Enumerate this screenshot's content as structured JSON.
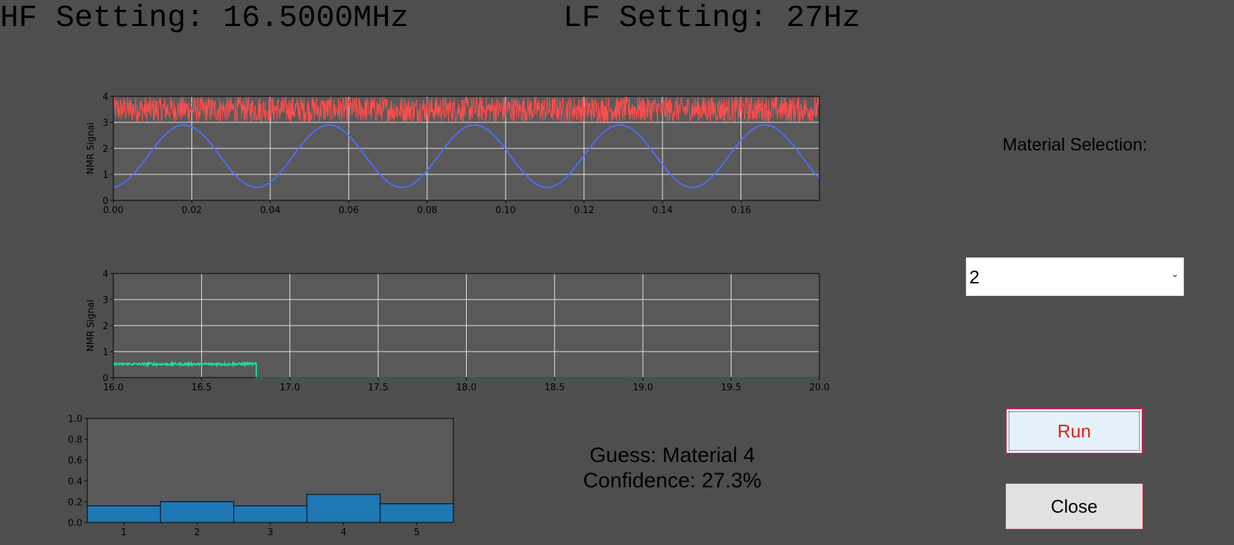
{
  "header": {
    "hf_setting": "HF Setting: 16.5000MHz",
    "lf_setting": "LF Setting: 27Hz"
  },
  "controls": {
    "material_label": "Material Selection:",
    "material_selected": "2",
    "run_label": "Run",
    "close_label": "Close"
  },
  "result": {
    "guess": "Guess: Material 4",
    "confidence": "Confidence: 27.3%"
  },
  "colors": {
    "background": "#4e4e4e",
    "plot_bg": "#595959",
    "noise": "#ff4d4d",
    "lf_wave": "#4d6fff",
    "spectrum": "#1fd9a0",
    "bars": "#1f77b4",
    "run_text": "#e02010"
  },
  "chart_data": [
    {
      "type": "line",
      "ylabel": "NMR Signal",
      "xlim": [
        0.0,
        0.18
      ],
      "ylim": [
        0,
        4
      ],
      "xticks": [
        "0.00",
        "0.02",
        "0.04",
        "0.06",
        "0.08",
        "0.10",
        "0.12",
        "0.14",
        "0.16"
      ],
      "yticks": [
        "0",
        "1",
        "2",
        "3",
        "4"
      ],
      "grid": true,
      "series": [
        {
          "kind": "noise",
          "y_band": [
            3.0,
            4.0
          ],
          "color": "#ff4d4d"
        },
        {
          "kind": "sine",
          "frequency_hz": 27,
          "mid": 1.7,
          "amplitude": 1.2,
          "peak_x": 0.018,
          "color": "#4d6fff"
        }
      ]
    },
    {
      "type": "line",
      "ylabel": "NMR Signal",
      "xlim": [
        16.0,
        20.0
      ],
      "ylim": [
        0,
        4
      ],
      "xticks": [
        "16.0",
        "16.5",
        "17.0",
        "17.5",
        "18.0",
        "18.5",
        "19.0",
        "19.5",
        "20.0"
      ],
      "yticks": [
        "0",
        "1",
        "2",
        "3",
        "4"
      ],
      "grid": true,
      "series": [
        {
          "kind": "sweep",
          "level": 0.52,
          "jitter": 0.05,
          "end_x": 16.81,
          "after_level": 0.0,
          "color": "#1fd9a0"
        }
      ]
    },
    {
      "type": "bar",
      "categories": [
        "1",
        "2",
        "3",
        "4",
        "5"
      ],
      "values": [
        0.16,
        0.2,
        0.16,
        0.27,
        0.18
      ],
      "ylim": [
        0,
        1.0
      ],
      "yticks": [
        "0.0",
        "0.2",
        "0.4",
        "0.6",
        "0.8",
        "1.0"
      ],
      "grid": false
    }
  ]
}
